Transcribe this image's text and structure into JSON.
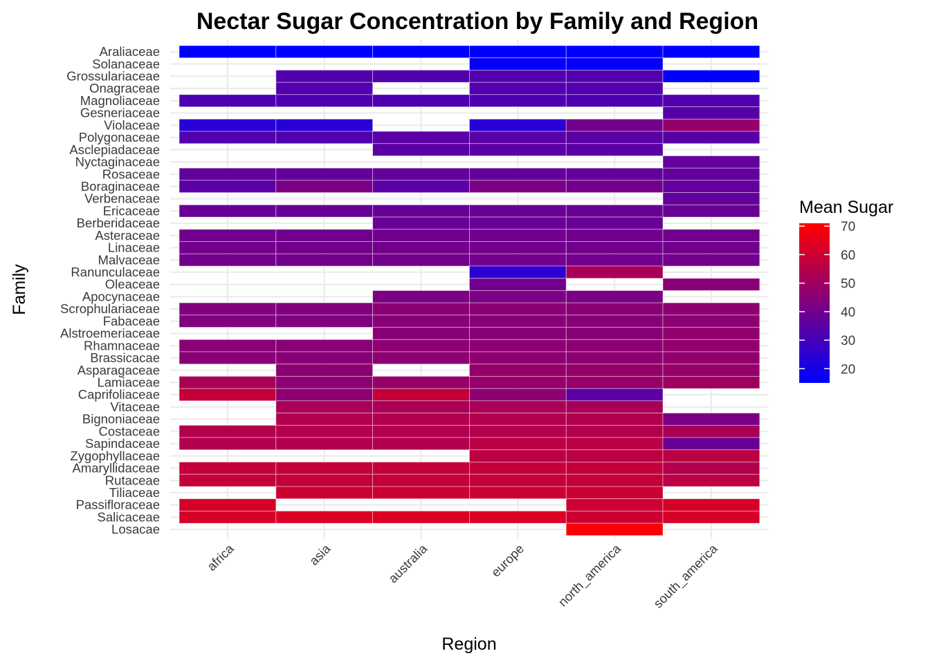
{
  "chart_data": {
    "type": "heatmap",
    "title": "Nectar Sugar Concentration by Family and Region",
    "xlabel": "Region",
    "ylabel": "Family",
    "grid": true,
    "legend_position": "right",
    "legend": {
      "title": "Mean Sugar",
      "ticks": [
        20,
        30,
        40,
        50,
        60,
        70
      ],
      "min": 15,
      "max": 71,
      "low_color": "#0000FF",
      "high_color": "#FF0000"
    },
    "x": [
      "africa",
      "asia",
      "australia",
      "europe",
      "north_america",
      "south_america"
    ],
    "y": [
      "Araliaceae",
      "Solanaceae",
      "Grossulariaceae",
      "Onagraceae",
      "Magnoliaceae",
      "Gesneriaceae",
      "Violaceae",
      "Polygonaceae",
      "Asclepiadaceae",
      "Nyctaginaceae",
      "Rosaceae",
      "Boraginaceae",
      "Verbenaceae",
      "Ericaceae",
      "Berberidaceae",
      "Asteraceae",
      "Linaceae",
      "Malvaceae",
      "Ranunculaceae",
      "Oleaceae",
      "Apocynaceae",
      "Scrophulariaceae",
      "Fabaceae",
      "Alstroemeriaceae",
      "Rhamnaceae",
      "Brassicacae",
      "Asparagaceae",
      "Lamiaceae",
      "Caprifoliaceae",
      "Vitaceae",
      "Bignoniaceae",
      "Costaceae",
      "Sapindaceae",
      "Zygophyllaceae",
      "Amaryllidaceae",
      "Rutaceae",
      "Tiliaceae",
      "Passifloraceae",
      "Salicaceae",
      "Losacae"
    ],
    "values": [
      [
        15,
        15,
        15,
        15,
        15,
        15
      ],
      [
        null,
        null,
        null,
        16,
        16,
        null
      ],
      [
        null,
        33,
        33,
        33,
        33,
        15
      ],
      [
        null,
        33,
        null,
        33,
        33,
        null
      ],
      [
        32,
        32,
        32,
        32,
        32,
        33
      ],
      [
        null,
        null,
        null,
        null,
        null,
        34
      ],
      [
        24,
        24,
        null,
        24,
        40,
        48
      ],
      [
        33,
        33,
        35,
        35,
        35,
        34
      ],
      [
        null,
        null,
        35,
        35,
        35,
        null
      ],
      [
        null,
        null,
        null,
        null,
        null,
        37
      ],
      [
        37,
        37,
        37,
        37,
        37,
        37
      ],
      [
        35,
        42,
        35,
        42,
        40,
        37
      ],
      [
        null,
        null,
        null,
        null,
        null,
        37
      ],
      [
        38,
        38,
        38,
        38,
        38,
        38
      ],
      [
        null,
        null,
        38,
        38,
        38,
        null
      ],
      [
        40,
        40,
        40,
        40,
        40,
        40
      ],
      [
        40,
        40,
        40,
        40,
        40,
        40
      ],
      [
        40,
        40,
        40,
        40,
        40,
        40
      ],
      [
        null,
        null,
        null,
        25,
        52,
        null
      ],
      [
        null,
        null,
        null,
        40,
        null,
        45
      ],
      [
        null,
        null,
        42,
        42,
        42,
        null
      ],
      [
        43,
        43,
        45,
        45,
        45,
        46
      ],
      [
        43,
        43,
        45,
        45,
        45,
        46
      ],
      [
        null,
        null,
        45,
        45,
        45,
        47
      ],
      [
        45,
        45,
        46,
        46,
        46,
        47
      ],
      [
        45,
        45,
        46,
        46,
        46,
        47
      ],
      [
        null,
        46,
        null,
        48,
        48,
        48
      ],
      [
        52,
        46,
        48,
        48,
        48,
        50
      ],
      [
        58,
        46,
        58,
        46,
        35,
        null
      ],
      [
        null,
        52,
        52,
        52,
        52,
        null
      ],
      [
        null,
        54,
        54,
        54,
        54,
        42
      ],
      [
        54,
        54,
        54,
        54,
        54,
        52
      ],
      [
        54,
        54,
        54,
        56,
        56,
        38
      ],
      [
        null,
        null,
        null,
        56,
        56,
        56
      ],
      [
        58,
        58,
        58,
        58,
        58,
        54
      ],
      [
        58,
        58,
        58,
        58,
        58,
        56
      ],
      [
        null,
        60,
        60,
        60,
        60,
        null
      ],
      [
        62,
        null,
        null,
        null,
        60,
        62
      ],
      [
        62,
        63,
        63,
        63,
        60,
        62
      ],
      [
        null,
        null,
        null,
        null,
        70,
        null
      ]
    ]
  }
}
